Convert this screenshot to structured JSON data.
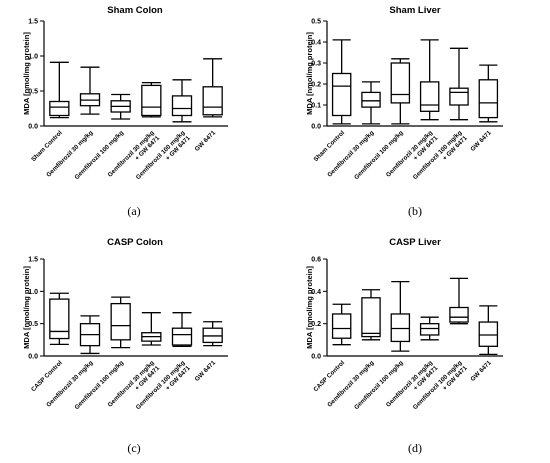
{
  "chart_data": [
    {
      "type": "box",
      "panel": "(a)",
      "title": "Sham Colon",
      "ylabel": "MDA [nmol/mg protein]",
      "ylim": [
        0,
        1.5
      ],
      "yticks": [
        "0.0",
        "0.5",
        "1.0",
        "1.5"
      ],
      "ytick_values": [
        0,
        0.5,
        1.0,
        1.5
      ],
      "categories": [
        [
          "Sham Control"
        ],
        [
          "Gemfibrozil 30 mg/kg"
        ],
        [
          "Gemfibrozil 100 mg/kg"
        ],
        [
          "Gemfibrozil 30 mg/kg",
          "+ GW 6471"
        ],
        [
          "Gemfibrozil 100 mg/kg",
          "+ GW 6471"
        ],
        [
          "GW 6471"
        ]
      ],
      "boxes": [
        {
          "min": 0.12,
          "q1": 0.15,
          "median": 0.27,
          "q3": 0.35,
          "max": 0.91
        },
        {
          "min": 0.17,
          "q1": 0.29,
          "median": 0.37,
          "q3": 0.46,
          "max": 0.84
        },
        {
          "min": 0.1,
          "q1": 0.2,
          "median": 0.28,
          "q3": 0.36,
          "max": 0.45
        },
        {
          "min": 0.13,
          "q1": 0.15,
          "median": 0.27,
          "q3": 0.58,
          "max": 0.62
        },
        {
          "min": 0.06,
          "q1": 0.15,
          "median": 0.25,
          "q3": 0.43,
          "max": 0.66
        },
        {
          "min": 0.13,
          "q1": 0.16,
          "median": 0.27,
          "q3": 0.56,
          "max": 0.96
        }
      ]
    },
    {
      "type": "box",
      "panel": "(b)",
      "title": "Sham Liver",
      "ylabel": "MDA [nmol/mg protein]",
      "ylim": [
        0,
        0.5
      ],
      "yticks": [
        "0.0",
        "0.1",
        "0.2",
        "0.3",
        "0.4",
        "0.5"
      ],
      "ytick_values": [
        0,
        0.1,
        0.2,
        0.3,
        0.4,
        0.5
      ],
      "categories": [
        [
          "Sham Control"
        ],
        [
          "Gemfibrozil 30 mg/kg"
        ],
        [
          "Gemfibrozil 100 mg/kg"
        ],
        [
          "Gemfibrozil 30 mg/kg",
          "+ GW 6471"
        ],
        [
          "Gemfibrozil 100 mg/kg",
          "+ GW 6471"
        ],
        [
          "GW 6471"
        ]
      ],
      "boxes": [
        {
          "min": 0.01,
          "q1": 0.05,
          "median": 0.19,
          "q3": 0.25,
          "max": 0.41
        },
        {
          "min": 0.01,
          "q1": 0.09,
          "median": 0.12,
          "q3": 0.16,
          "max": 0.21
        },
        {
          "min": 0.01,
          "q1": 0.11,
          "median": 0.15,
          "q3": 0.3,
          "max": 0.32
        },
        {
          "min": 0.03,
          "q1": 0.07,
          "median": 0.1,
          "q3": 0.21,
          "max": 0.41
        },
        {
          "min": 0.03,
          "q1": 0.1,
          "median": 0.16,
          "q3": 0.18,
          "max": 0.37
        },
        {
          "min": 0.02,
          "q1": 0.04,
          "median": 0.11,
          "q3": 0.22,
          "max": 0.29
        }
      ]
    },
    {
      "type": "box",
      "panel": "(c)",
      "title": "CASP Colon",
      "ylabel": "MDA [nmol/mg protein]",
      "ylim": [
        0,
        1.5
      ],
      "yticks": [
        "0.0",
        "0.5",
        "1.0",
        "1.5"
      ],
      "ytick_values": [
        0,
        0.5,
        1.0,
        1.5
      ],
      "categories": [
        [
          "CASP Control"
        ],
        [
          "Gemfibrozil 30 mg/kg"
        ],
        [
          "Gemfibrozil 100 mg/kg"
        ],
        [
          "Gemfibrozil 30 mg/kg",
          "+ GW 6471"
        ],
        [
          "Gemfibrozil 100 mg/kg",
          "+ GW 6471"
        ],
        [
          "GW 6471"
        ]
      ],
      "boxes": [
        {
          "min": 0.18,
          "q1": 0.27,
          "median": 0.38,
          "q3": 0.88,
          "max": 0.97
        },
        {
          "min": 0.04,
          "q1": 0.16,
          "median": 0.33,
          "q3": 0.5,
          "max": 0.62
        },
        {
          "min": 0.13,
          "q1": 0.25,
          "median": 0.47,
          "q3": 0.81,
          "max": 0.91
        },
        {
          "min": 0.17,
          "q1": 0.23,
          "median": 0.3,
          "q3": 0.36,
          "max": 0.67
        },
        {
          "min": 0.15,
          "q1": 0.17,
          "median": 0.33,
          "q3": 0.43,
          "max": 0.67
        },
        {
          "min": 0.16,
          "q1": 0.21,
          "median": 0.31,
          "q3": 0.43,
          "max": 0.53
        }
      ]
    },
    {
      "type": "box",
      "panel": "(d)",
      "title": "CASP Liver",
      "ylabel": "MDA [nmol/mg protein]",
      "ylim": [
        0,
        0.6
      ],
      "yticks": [
        "0.0",
        "0.2",
        "0.4",
        "0.6"
      ],
      "ytick_values": [
        0,
        0.2,
        0.4,
        0.6
      ],
      "categories": [
        [
          "CASP Control"
        ],
        [
          "Gemfibrozil 30 mg/kg"
        ],
        [
          "Gemfibrozil 100 mg/kg"
        ],
        [
          "Gemfibrozil 30 mg/kg",
          "+ GW 6471"
        ],
        [
          "Gemfibrozil 100 mg/kg",
          "+ GW 6471"
        ],
        [
          "GW 6471"
        ]
      ],
      "boxes": [
        {
          "min": 0.07,
          "q1": 0.11,
          "median": 0.17,
          "q3": 0.26,
          "max": 0.32
        },
        {
          "min": 0.1,
          "q1": 0.12,
          "median": 0.14,
          "q3": 0.36,
          "max": 0.41
        },
        {
          "min": 0.03,
          "q1": 0.09,
          "median": 0.17,
          "q3": 0.26,
          "max": 0.46
        },
        {
          "min": 0.1,
          "q1": 0.13,
          "median": 0.17,
          "q3": 0.2,
          "max": 0.24
        },
        {
          "min": 0.2,
          "q1": 0.21,
          "median": 0.24,
          "q3": 0.3,
          "max": 0.48
        },
        {
          "min": 0.01,
          "q1": 0.06,
          "median": 0.13,
          "q3": 0.21,
          "max": 0.31
        }
      ]
    }
  ]
}
